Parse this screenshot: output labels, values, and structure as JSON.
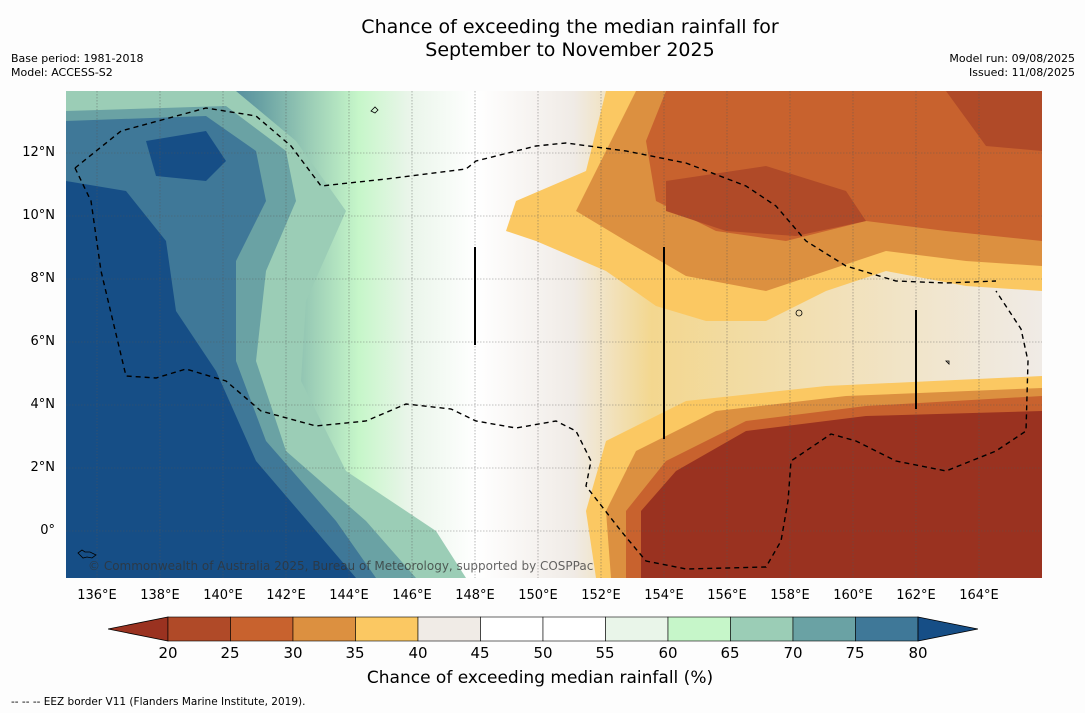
{
  "title": {
    "line1": "Chance of exceeding the median rainfall for",
    "line2": "September to November 2025"
  },
  "meta": {
    "base_period": "Base period: 1981-2018",
    "model": "Model: ACCESS-S2",
    "model_run": "Model run: 09/08/2025",
    "issued": "Issued: 11/08/2025"
  },
  "map": {
    "copyright": "© Commonwealth of Australia 2025, Bureau of Meteorology, supported by COSPPac",
    "lat_labels": [
      "12°N",
      "10°N",
      "8°N",
      "6°N",
      "4°N",
      "2°N",
      "0°"
    ],
    "lon_labels": [
      "136°E",
      "138°E",
      "140°E",
      "142°E",
      "144°E",
      "146°E",
      "148°E",
      "150°E",
      "152°E",
      "154°E",
      "156°E",
      "158°E",
      "160°E",
      "162°E",
      "164°E"
    ]
  },
  "colorbar": {
    "title": "Chance of exceeding median rainfall (%)",
    "ticks": [
      "20",
      "25",
      "30",
      "35",
      "40",
      "45",
      "50",
      "55",
      "60",
      "65",
      "70",
      "75",
      "80"
    ],
    "colors": [
      "#9a3220",
      "#b04a28",
      "#c8622e",
      "#dc9040",
      "#fbc862",
      "#f0ebe6",
      "#ffffff",
      "#ffffff",
      "#e9f5e9",
      "#c6f6c9",
      "#9bcdb6",
      "#6aa2a4",
      "#3f7898",
      "#164e86"
    ]
  },
  "footnote": "--  --  -- EEZ border V11 (Flanders Marine Institute, 2019)."
}
